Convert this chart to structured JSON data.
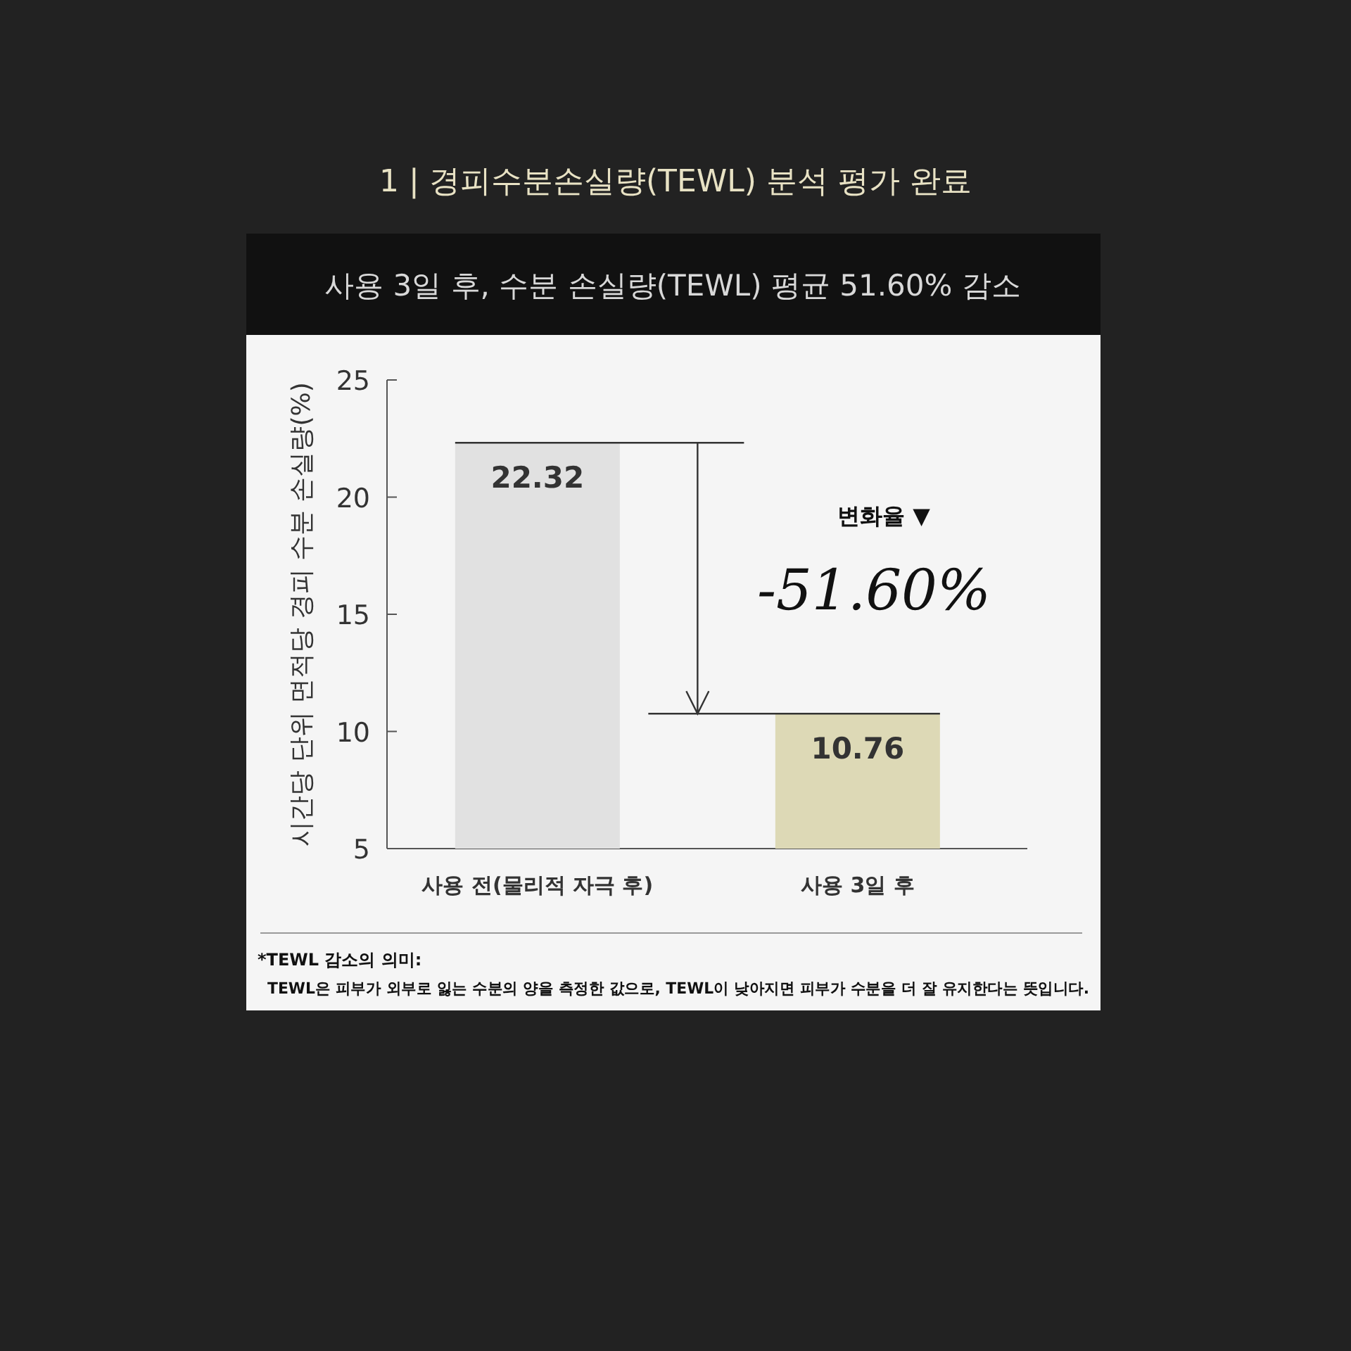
{
  "chart_data": {
    "type": "bar",
    "title": "1 | 경피수분손실량(TEWL) 분석 평가 완료",
    "subtitle": "사용 3일 후, 수분 손실량(TEWL) 평균 51.60% 감소",
    "ylabel": "시간당 단위 면적당 경피 수분 손실량(%)",
    "categories": [
      "사용 전(물리적 자극 후)",
      "사용 3일 후"
    ],
    "values": [
      22.32,
      10.76
    ],
    "colors": [
      "#e1e1e1",
      "#ddd9b6"
    ],
    "ylim": [
      5,
      25
    ],
    "yticks": [
      5,
      10,
      15,
      20,
      25
    ],
    "data_labels": true,
    "grid": false,
    "ref_lines": [
      {
        "axis": "y",
        "value": 22.32
      },
      {
        "axis": "y",
        "value": 10.76
      }
    ],
    "annotations": [
      "변화율 ▼",
      "-51.60%",
      "*TEWL 감소의 의미:",
      "TEWL은 피부가 외부로 잃는 수분의 양을 측정한 값으로, TEWL이 낮아지면 피부가 수분을 더 잘 유지한다는 뜻입니다."
    ]
  }
}
